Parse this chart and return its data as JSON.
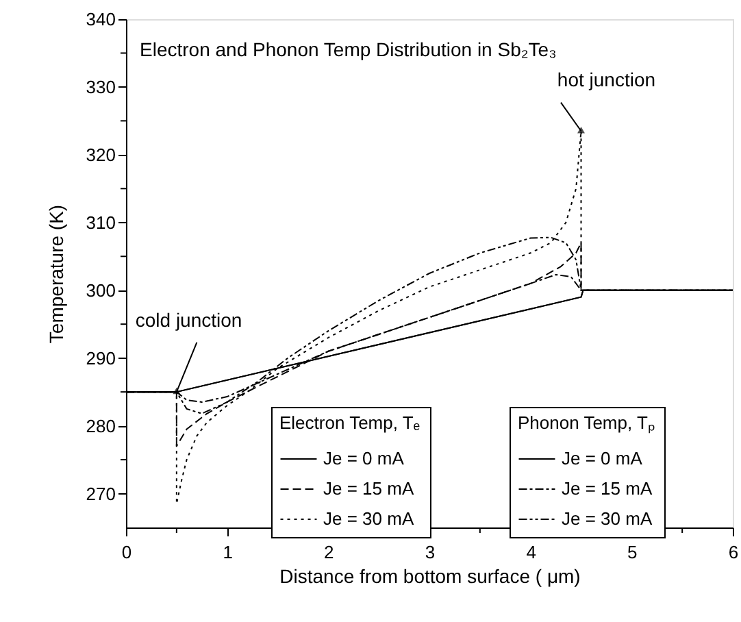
{
  "chart_data": {
    "type": "line",
    "title": "Electron and Phonon Temp Distribution in Sb₂Te₃",
    "xlabel": "Distance from bottom surface ( μm)",
    "ylabel": "Temperature (K)",
    "legend_title": [
      "Electron Temp, Tₑ",
      "Phonon Temp, Tₚ"
    ],
    "xlim": [
      0,
      6
    ],
    "xticks": [
      0,
      {
        "value": 0.5,
        "label": null
      },
      1,
      {
        "value": 1.5,
        "label": null
      },
      2,
      {
        "value": 2.5,
        "label": null
      },
      3,
      {
        "value": 3.5,
        "label": null
      },
      4,
      {
        "value": 4.5,
        "label": null
      },
      5,
      {
        "value": 5.5,
        "label": null
      },
      6
    ],
    "ylim": [
      265,
      340
    ],
    "yticks": [
      270,
      {
        "value": 275,
        "label": null
      },
      280,
      {
        "value": 285,
        "label": null
      },
      290,
      {
        "value": 295,
        "label": null
      },
      300,
      {
        "value": 305,
        "label": null
      },
      310,
      {
        "value": 315,
        "label": null
      },
      320,
      {
        "value": 325,
        "label": null
      },
      330,
      {
        "value": 335,
        "label": null
      },
      340
    ],
    "grid": false,
    "legend": "bottom right",
    "marker": "none",
    "annotations": [
      {
        "text": "cold junction",
        "x": 0.5,
        "y": 285
      },
      {
        "text": "hot junction",
        "x": 4.5,
        "y": 323.5
      }
    ],
    "series": [
      {
        "name": "Je = 0 mA",
        "color": "#000000",
        "line_style": "solid",
        "x": [
          0,
          0.5,
          4.5,
          4.52,
          6
        ],
        "values": [
          285,
          285,
          299,
          300,
          300
        ]
      },
      {
        "name": "Je = 15 mA",
        "color": "#000000",
        "line_style": "dashed",
        "x": [
          0,
          0.5,
          0.5,
          0.6,
          0.8,
          1.0,
          1.3,
          1.6,
          2,
          2.5,
          3,
          3.5,
          4,
          4.3,
          4.45,
          4.5,
          4.5,
          6
        ],
        "values": [
          285,
          285,
          277,
          279.5,
          281.8,
          283.5,
          285.8,
          288,
          291,
          293.5,
          296,
          298.5,
          301,
          303.5,
          305.5,
          307,
          300,
          300
        ]
      },
      {
        "name": "Je = 30 mA",
        "color": "#000000",
        "line_style": "dotted",
        "x": [
          0,
          0.5,
          0.5,
          0.55,
          0.6,
          0.7,
          0.8,
          1.0,
          1.2,
          1.5,
          2,
          2.5,
          3,
          3.5,
          4,
          4.2,
          4.35,
          4.45,
          4.5,
          4.5,
          6
        ],
        "values": [
          285,
          285,
          268.5,
          272,
          275,
          278.5,
          280.5,
          283,
          285,
          288.5,
          293,
          297,
          300.5,
          303,
          305.5,
          307,
          310,
          315,
          323.5,
          300,
          300
        ]
      },
      {
        "name": "Je = 0 mA",
        "color": "#000000",
        "line_style": "solid",
        "x": [
          0,
          0.5,
          4.5,
          4.52,
          6
        ],
        "values": [
          285,
          285,
          299,
          300,
          300
        ]
      },
      {
        "name": "Je = 15 mA",
        "color": "#000000",
        "line_style": "dashdot",
        "x": [
          0,
          0.5,
          0.6,
          0.75,
          1.0,
          1.3,
          2,
          2.5,
          3,
          3.5,
          4,
          4.25,
          4.4,
          4.5,
          6
        ],
        "values": [
          285,
          285,
          283.8,
          283.5,
          284.3,
          286.3,
          291,
          293.5,
          296,
          298.5,
          301,
          302.3,
          302,
          300,
          300
        ]
      },
      {
        "name": "Je = 30 mA",
        "color": "#000000",
        "line_style": "dashdotdot",
        "x": [
          0,
          0.5,
          0.6,
          0.75,
          1.0,
          1.3,
          1.6,
          2,
          2.5,
          3,
          3.5,
          4,
          4.2,
          4.35,
          4.45,
          4.5,
          6
        ],
        "values": [
          285,
          285,
          282.5,
          281.8,
          283.5,
          286.5,
          290,
          294,
          298.5,
          302.5,
          305.5,
          307.7,
          307.8,
          307,
          304.5,
          300,
          300
        ]
      }
    ]
  }
}
